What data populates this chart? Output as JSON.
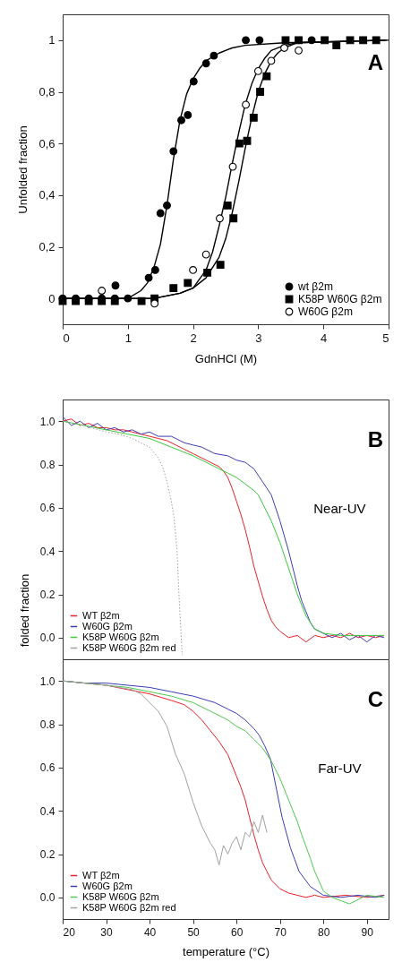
{
  "chart_data": [
    {
      "type": "scatter",
      "annotations": [
        "A"
      ],
      "xlabel": "GdnHCl (M)",
      "ylabel": "Unfolded fraction",
      "xlim": [
        0,
        5
      ],
      "ylim": [
        -0.1,
        1.1
      ],
      "xticks": [
        0,
        1,
        2,
        3,
        4,
        5
      ],
      "yticks": [
        0,
        {
          "value": 0.2,
          "label": "0,2"
        },
        {
          "value": 0.4,
          "label": "0,4"
        },
        {
          "value": 0.6,
          "label": "0,6"
        },
        {
          "value": 0.8,
          "label": "0,8"
        },
        1
      ],
      "legend": "bottom right",
      "series": [
        {
          "name": "wt β2m",
          "color": "#000000",
          "marker": "circle",
          "x": [
            0,
            0.2,
            0.4,
            0.6,
            0.81,
            0.8,
            1.0,
            1.32,
            1.42,
            1.5,
            1.6,
            1.7,
            1.82,
            1.92,
            2.01,
            2.2,
            2.32,
            2.81,
            3.02,
            3.82
          ],
          "values": [
            0,
            0,
            0,
            0,
            0.05,
            0,
            0,
            0.08,
            0.11,
            0.33,
            0.36,
            0.57,
            0.69,
            0.71,
            0.84,
            0.91,
            0.94,
            1.0,
            1.0,
            1.0
          ]
        },
        {
          "name": "K58P W60G β2m",
          "color": "#000000",
          "marker": "square",
          "x": [
            0,
            0.2,
            0.4,
            0.6,
            0.8,
            1.21,
            1.41,
            1.7,
            1.92,
            2.22,
            2.42,
            2.53,
            2.62,
            2.71,
            2.83,
            2.93,
            3.03,
            3.13,
            3.42,
            3.62,
            4.02,
            4.2,
            4.41,
            4.61,
            4.81
          ],
          "values": [
            -0.01,
            -0.01,
            -0.01,
            -0.01,
            -0.01,
            -0.01,
            0,
            0.04,
            0.06,
            0.1,
            0.13,
            0.36,
            0.31,
            0.6,
            0.61,
            0.7,
            0.8,
            0.86,
            1.0,
            1.0,
            1.0,
            0.98,
            1.0,
            1.0,
            1.0
          ]
        },
        {
          "name": "W60G β2m",
          "color": "#ffffff",
          "marker": "circle",
          "x": [
            0.6,
            1.41,
            2.0,
            2.2,
            2.41,
            2.61,
            2.81,
            3.0,
            3.2,
            3.4,
            3.62
          ],
          "values": [
            0.03,
            -0.02,
            0.11,
            0.17,
            0.31,
            0.51,
            0.75,
            0.88,
            0.92,
            0.97,
            0.96
          ]
        },
        {
          "type": "line",
          "color": "#000000",
          "x": [
            0,
            1.0,
            1.2,
            1.3,
            1.4,
            1.5,
            1.6,
            1.7,
            1.8,
            1.9,
            2.0,
            2.1,
            2.2,
            2.4,
            2.6,
            2.8,
            3.4,
            5
          ],
          "values": [
            0,
            0,
            0.03,
            0.06,
            0.12,
            0.21,
            0.36,
            0.54,
            0.69,
            0.79,
            0.85,
            0.89,
            0.92,
            0.95,
            0.97,
            0.98,
            0.99,
            1.0
          ]
        },
        {
          "type": "line",
          "color": "#000000",
          "x": [
            0.02,
            1.4,
            1.8,
            2.0,
            2.2,
            2.3,
            2.4,
            2.5,
            2.6,
            2.7,
            2.8,
            2.9,
            3.0,
            3.1,
            3.2,
            3.4,
            3.6,
            4.97
          ],
          "values": [
            0,
            0,
            0.02,
            0.04,
            0.11,
            0.18,
            0.28,
            0.39,
            0.52,
            0.64,
            0.75,
            0.83,
            0.89,
            0.93,
            0.96,
            0.98,
            0.99,
            1.0
          ]
        },
        {
          "type": "line",
          "color": "#000000",
          "x": [
            0.04,
            1.4,
            1.8,
            2.0,
            2.2,
            2.4,
            2.5,
            2.6,
            2.7,
            2.8,
            2.9,
            3.0,
            3.1,
            3.2,
            3.3,
            3.4,
            3.6,
            4.94
          ],
          "values": [
            0,
            0,
            0.02,
            0.04,
            0.08,
            0.16,
            0.23,
            0.33,
            0.45,
            0.58,
            0.7,
            0.8,
            0.87,
            0.92,
            0.95,
            0.97,
            0.99,
            1.0
          ]
        }
      ]
    },
    {
      "type": "line",
      "annotations": [
        "B",
        "Near-UV"
      ],
      "ylabel": "folded fraction",
      "xlim": [
        20,
        95
      ],
      "ylim": [
        -0.1,
        1.1
      ],
      "xticks": [
        20,
        30,
        40,
        50,
        60,
        70,
        80,
        90
      ],
      "yticks": [
        {
          "value": 0,
          "label": "0.0"
        },
        0.2,
        0.4,
        0.6,
        0.8,
        {
          "value": 1,
          "label": "1.0"
        }
      ],
      "tick_labels": "y",
      "legend": "bottom left",
      "series": [
        {
          "name": "WT β2m",
          "color": "#e8202a",
          "x": [
            20,
            22,
            24,
            26,
            28,
            30,
            32,
            34,
            36,
            38,
            40,
            42,
            44,
            46,
            48,
            50,
            52,
            54,
            56,
            57,
            58,
            59,
            60,
            61,
            62,
            63,
            64,
            65,
            66,
            67,
            68,
            69,
            70,
            72,
            74,
            76,
            78,
            80,
            82,
            84,
            86,
            88,
            90,
            92,
            94
          ],
          "values": [
            1.0,
            1.01,
            0.98,
            0.99,
            0.97,
            0.97,
            0.96,
            0.96,
            0.95,
            0.94,
            0.93,
            0.92,
            0.91,
            0.89,
            0.87,
            0.85,
            0.83,
            0.81,
            0.79,
            0.77,
            0.74,
            0.69,
            0.63,
            0.57,
            0.5,
            0.42,
            0.33,
            0.26,
            0.19,
            0.13,
            0.08,
            0.05,
            0.03,
            0.0,
            0.01,
            -0.02,
            0.01,
            0.0,
            0.01,
            0.0,
            0.02,
            0.0,
            0.01,
            0.0,
            0.01
          ]
        },
        {
          "name": "W60G β2m",
          "color": "#3c3cb4",
          "x": [
            20,
            22,
            24,
            26,
            28,
            30,
            32,
            34,
            36,
            38,
            40,
            42,
            45,
            48,
            50,
            52,
            55,
            58,
            60,
            62,
            64,
            66,
            68,
            70,
            72,
            74,
            75,
            76,
            77,
            78,
            80,
            82,
            84,
            86,
            88,
            90,
            92,
            94
          ],
          "values": [
            1.02,
            0.98,
            1.0,
            0.97,
            0.99,
            0.96,
            0.97,
            0.95,
            0.96,
            0.94,
            0.95,
            0.93,
            0.93,
            0.9,
            0.89,
            0.88,
            0.85,
            0.84,
            0.82,
            0.81,
            0.78,
            0.72,
            0.66,
            0.54,
            0.4,
            0.24,
            0.17,
            0.12,
            0.07,
            0.04,
            0.02,
            0.0,
            0.02,
            -0.01,
            0.01,
            -0.02,
            0.01,
            0.0
          ]
        },
        {
          "name": "K58P W60G β2m",
          "color": "#3cc83c",
          "x": [
            20,
            25,
            30,
            35,
            40,
            45,
            50,
            55,
            58,
            60,
            62,
            64,
            65,
            66,
            68,
            70,
            72,
            74,
            76,
            78,
            80,
            84,
            88,
            92,
            94
          ],
          "values": [
            1.0,
            0.98,
            0.96,
            0.94,
            0.92,
            0.88,
            0.84,
            0.79,
            0.76,
            0.74,
            0.71,
            0.68,
            0.66,
            0.62,
            0.54,
            0.44,
            0.32,
            0.2,
            0.1,
            0.04,
            0.02,
            0.01,
            0.01,
            0.01,
            0.01
          ]
        },
        {
          "name": "K58P W60G β2m red",
          "color": "#a0a0a0",
          "line_style": "dotted",
          "x": [
            20,
            25,
            30,
            33,
            36,
            38,
            40,
            42,
            43,
            44,
            45,
            45.6,
            46.3,
            46.9,
            47.3,
            47.5
          ],
          "values": [
            1.0,
            0.98,
            0.95,
            0.94,
            0.92,
            0.9,
            0.88,
            0.83,
            0.79,
            0.72,
            0.63,
            0.56,
            0.41,
            0.14,
            0.0,
            -0.08
          ]
        }
      ]
    },
    {
      "type": "line",
      "annotations": [
        "C",
        "Far-UV"
      ],
      "xlabel": "temperature (°C)",
      "xlim": [
        20,
        95
      ],
      "ylim": [
        -0.1,
        1.1
      ],
      "xticks": [
        20,
        30,
        40,
        50,
        60,
        70,
        80,
        90
      ],
      "yticks": [
        {
          "value": 0,
          "label": "0.0"
        },
        0.2,
        0.4,
        0.6,
        0.8,
        {
          "value": 1,
          "label": "1.0"
        }
      ],
      "legend": "bottom left",
      "series": [
        {
          "name": "WT β2m",
          "color": "#e8202a",
          "x": [
            20,
            25,
            30,
            35,
            40,
            45,
            48,
            50,
            52,
            54,
            56,
            58,
            60,
            61,
            62,
            63,
            64,
            65,
            66,
            67,
            68,
            70,
            72,
            74,
            76,
            78,
            80,
            85,
            90,
            94
          ],
          "values": [
            1.0,
            0.99,
            0.98,
            0.96,
            0.94,
            0.91,
            0.89,
            0.86,
            0.82,
            0.77,
            0.72,
            0.66,
            0.56,
            0.51,
            0.45,
            0.37,
            0.29,
            0.22,
            0.16,
            0.12,
            0.08,
            0.04,
            0.02,
            0.01,
            0.0,
            0.01,
            0.0,
            0.01,
            0.0,
            0.01
          ]
        },
        {
          "name": "W60G β2m",
          "color": "#3c3cb4",
          "x": [
            20,
            25,
            30,
            35,
            40,
            45,
            50,
            55,
            58,
            60,
            62,
            64,
            65.2,
            66.5,
            67.8,
            69.2,
            70.5,
            72.4,
            74.4,
            77,
            80,
            84,
            88,
            92,
            94
          ],
          "values": [
            1.0,
            0.99,
            0.99,
            0.98,
            0.97,
            0.95,
            0.93,
            0.9,
            0.87,
            0.85,
            0.82,
            0.78,
            0.75,
            0.7,
            0.64,
            0.5,
            0.37,
            0.23,
            0.12,
            0.05,
            0.01,
            0.0,
            0.01,
            0.0,
            0.01
          ]
        },
        {
          "name": "K58P W60G β2m",
          "color": "#50c850",
          "x": [
            20,
            25,
            30,
            35,
            40,
            45,
            50,
            55,
            58,
            60,
            62,
            64,
            66,
            68,
            70,
            72,
            74,
            75,
            77,
            78,
            80,
            82,
            86,
            90,
            94
          ],
          "values": [
            1.0,
            0.99,
            0.98,
            0.97,
            0.95,
            0.93,
            0.9,
            0.85,
            0.82,
            0.79,
            0.77,
            0.73,
            0.69,
            0.63,
            0.55,
            0.45,
            0.35,
            0.29,
            0.18,
            0.12,
            0.03,
            0.0,
            -0.03,
            0.01,
            0.0
          ]
        },
        {
          "name": "K58P W60G β2m red",
          "color": "#a0a0a0",
          "x": [
            20,
            25,
            30,
            33,
            36,
            38,
            40,
            42,
            44,
            46,
            48,
            50,
            52,
            54,
            55,
            56,
            57,
            58,
            59,
            60,
            61,
            62,
            63,
            64,
            65,
            66,
            67
          ],
          "values": [
            1.0,
            0.99,
            0.98,
            0.97,
            0.96,
            0.94,
            0.9,
            0.86,
            0.79,
            0.66,
            0.57,
            0.44,
            0.33,
            0.25,
            0.22,
            0.15,
            0.24,
            0.2,
            0.25,
            0.28,
            0.22,
            0.3,
            0.28,
            0.35,
            0.3,
            0.38,
            0.3
          ]
        }
      ]
    }
  ]
}
